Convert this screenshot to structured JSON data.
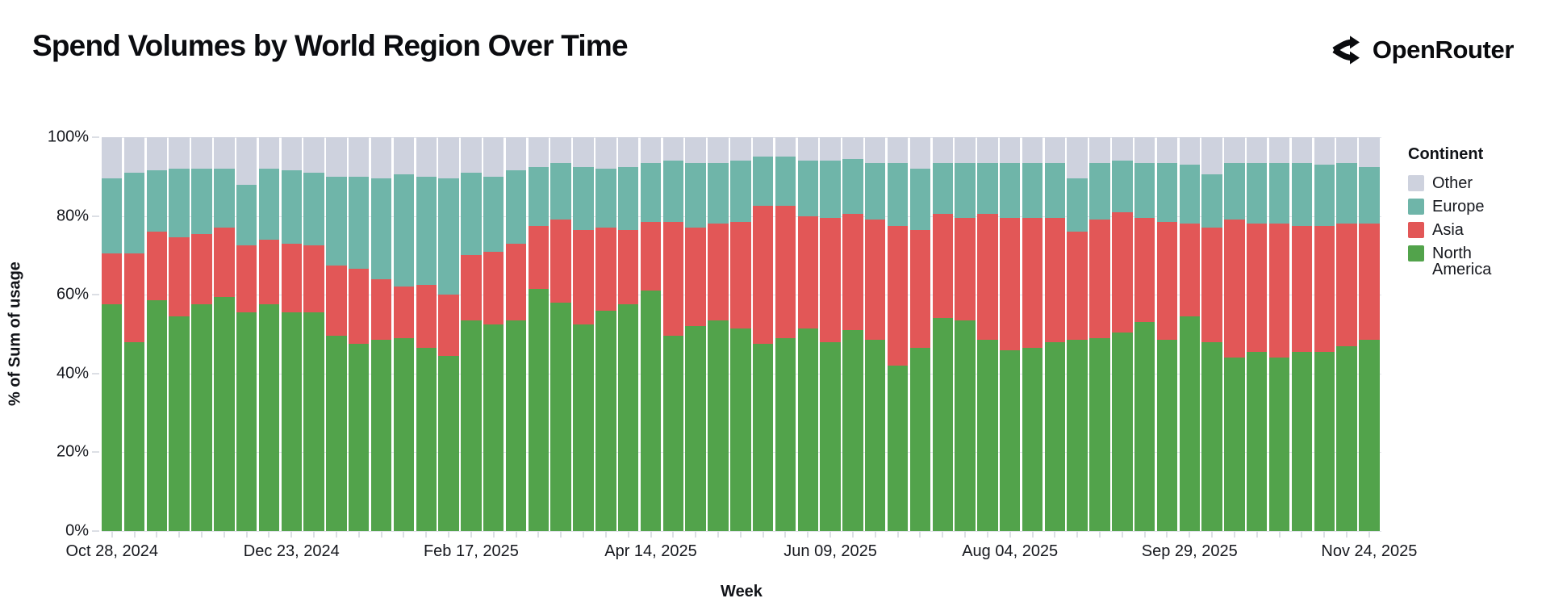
{
  "title": "Spend Volumes by World Region Over Time",
  "brand": {
    "name": "OpenRouter",
    "icon": "openrouter-fork-arrows-icon"
  },
  "colors": {
    "north_america": "#52A34B",
    "asia": "#E25757",
    "europe": "#6FB5A9",
    "other": "#CED2DE",
    "axis_text": "#16181e",
    "grid": "#e2e4ea"
  },
  "chart_data": {
    "type": "bar",
    "stacked": true,
    "normalized": "percent",
    "title": "Spend Volumes by World Region Over Time",
    "xlabel": "Week",
    "ylabel": "% of Sum of usage",
    "ylim": [
      0,
      100
    ],
    "grid": "horizontal",
    "y_ticks": [
      0,
      20,
      40,
      60,
      80,
      100
    ],
    "y_tick_labels": [
      "0%",
      "20%",
      "40%",
      "60%",
      "80%",
      "100%"
    ],
    "legend_title": "Continent",
    "legend_position": "right",
    "legend_order": [
      "Other",
      "Europe",
      "Asia",
      "North America"
    ],
    "x_labeled_tick_indices": [
      0,
      8,
      16,
      24,
      32,
      40,
      48,
      56
    ],
    "x_labeled_tick_labels": [
      "Oct 28, 2024",
      "Dec 23, 2024",
      "Feb 17, 2025",
      "Apr 14, 2025",
      "Jun 09, 2025",
      "Aug 04, 2025",
      "Sep 29, 2025",
      "Nov 24, 2025"
    ],
    "categories": [
      "Oct 28, 2024",
      "Nov 04, 2024",
      "Nov 11, 2024",
      "Nov 18, 2024",
      "Nov 25, 2024",
      "Dec 02, 2024",
      "Dec 09, 2024",
      "Dec 16, 2024",
      "Dec 23, 2024",
      "Dec 30, 2024",
      "Jan 06, 2025",
      "Jan 13, 2025",
      "Jan 20, 2025",
      "Jan 27, 2025",
      "Feb 03, 2025",
      "Feb 10, 2025",
      "Feb 17, 2025",
      "Feb 24, 2025",
      "Mar 03, 2025",
      "Mar 10, 2025",
      "Mar 17, 2025",
      "Mar 24, 2025",
      "Mar 31, 2025",
      "Apr 07, 2025",
      "Apr 14, 2025",
      "Apr 21, 2025",
      "Apr 28, 2025",
      "May 05, 2025",
      "May 12, 2025",
      "May 19, 2025",
      "May 26, 2025",
      "Jun 02, 2025",
      "Jun 09, 2025",
      "Jun 16, 2025",
      "Jun 23, 2025",
      "Jun 30, 2025",
      "Jul 07, 2025",
      "Jul 14, 2025",
      "Jul 21, 2025",
      "Jul 28, 2025",
      "Aug 04, 2025",
      "Aug 11, 2025",
      "Aug 18, 2025",
      "Aug 25, 2025",
      "Sep 01, 2025",
      "Sep 08, 2025",
      "Sep 15, 2025",
      "Sep 22, 2025",
      "Sep 29, 2025",
      "Oct 06, 2025",
      "Oct 13, 2025",
      "Oct 20, 2025",
      "Oct 27, 2025",
      "Nov 03, 2025",
      "Nov 10, 2025",
      "Nov 17, 2025",
      "Nov 24, 2025"
    ],
    "series": [
      {
        "name": "North America",
        "color": "#52A34B",
        "values": [
          57.5,
          48.0,
          58.5,
          54.5,
          57.5,
          59.5,
          55.5,
          57.5,
          55.5,
          55.5,
          49.5,
          47.5,
          48.5,
          49.0,
          46.5,
          44.5,
          53.5,
          52.5,
          53.5,
          61.5,
          58.0,
          52.5,
          56.0,
          57.5,
          61.0,
          49.5,
          52.0,
          53.5,
          51.5,
          47.5,
          49.0,
          51.5,
          48.0,
          51.0,
          48.5,
          42.0,
          46.5,
          54.0,
          53.5,
          48.5,
          46.0,
          46.5,
          48.0,
          48.5,
          49.0,
          50.5,
          53.0,
          48.5,
          54.5,
          48.0,
          44.0,
          45.5,
          44.0,
          45.5,
          45.5,
          47.0,
          48.5
        ]
      },
      {
        "name": "Asia",
        "color": "#E25757",
        "values": [
          13.0,
          22.5,
          17.5,
          20.0,
          18.0,
          17.5,
          17.0,
          16.5,
          17.5,
          17.0,
          18.0,
          19.0,
          15.5,
          13.0,
          16.0,
          15.5,
          16.5,
          18.5,
          19.5,
          16.0,
          21.0,
          24.0,
          21.0,
          19.0,
          17.5,
          29.0,
          25.0,
          24.5,
          27.0,
          35.0,
          33.5,
          28.5,
          31.5,
          29.5,
          30.5,
          35.5,
          30.0,
          26.5,
          26.0,
          32.0,
          33.5,
          33.0,
          31.5,
          27.5,
          30.0,
          30.5,
          26.5,
          30.0,
          23.5,
          29.0,
          35.0,
          32.5,
          34.0,
          32.0,
          32.0,
          31.0,
          29.5
        ]
      },
      {
        "name": "Europe",
        "color": "#6FB5A9",
        "values": [
          19.0,
          20.5,
          15.5,
          17.5,
          16.5,
          15.0,
          15.5,
          18.0,
          18.5,
          18.5,
          22.5,
          23.5,
          25.5,
          28.5,
          27.5,
          29.5,
          21.0,
          19.0,
          18.5,
          15.0,
          14.5,
          16.0,
          15.0,
          16.0,
          15.0,
          15.5,
          16.5,
          15.5,
          15.5,
          12.5,
          12.5,
          14.0,
          14.5,
          14.0,
          14.5,
          16.0,
          15.5,
          13.0,
          14.0,
          13.0,
          14.0,
          14.0,
          14.0,
          13.5,
          14.5,
          13.0,
          14.0,
          15.0,
          15.0,
          13.5,
          14.5,
          15.5,
          15.5,
          16.0,
          15.5,
          15.5,
          14.5
        ]
      },
      {
        "name": "Other",
        "color": "#CED2DE",
        "values": [
          10.5,
          9.0,
          8.5,
          8.0,
          8.0,
          8.0,
          12.0,
          8.0,
          8.5,
          9.0,
          10.0,
          10.0,
          10.5,
          9.5,
          10.0,
          10.5,
          9.0,
          10.0,
          8.5,
          7.5,
          6.5,
          7.5,
          8.0,
          7.5,
          6.5,
          6.0,
          6.5,
          6.5,
          6.0,
          5.0,
          5.0,
          6.0,
          6.0,
          5.5,
          6.5,
          6.5,
          8.0,
          6.5,
          6.5,
          6.5,
          6.5,
          6.5,
          6.5,
          10.5,
          6.5,
          6.0,
          6.5,
          6.5,
          7.0,
          9.5,
          6.5,
          6.5,
          6.5,
          6.5,
          7.0,
          6.5,
          7.5
        ]
      }
    ]
  }
}
